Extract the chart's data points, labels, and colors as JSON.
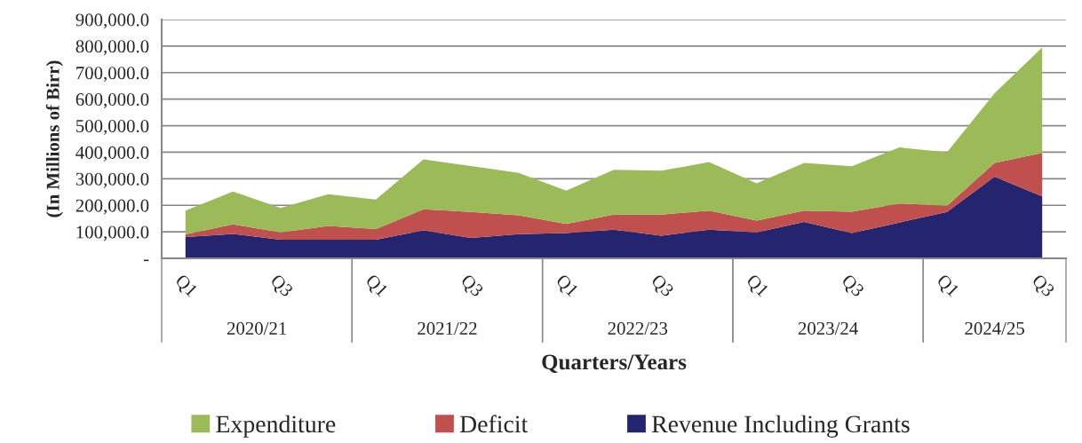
{
  "chart_data": {
    "type": "area",
    "stacked": true,
    "xlabel": "Quarters/Years",
    "ylabel": "(In Millions of Birr)",
    "categories": [
      "Q1",
      null,
      "Q3",
      null,
      "Q1",
      null,
      "Q3",
      null,
      "Q1",
      null,
      "Q3",
      null,
      "Q1",
      null,
      "Q3",
      null,
      "Q1",
      null,
      "Q3"
    ],
    "series": [
      {
        "name": "Revenue Including Grants",
        "color": "#25256f",
        "values": [
          80000,
          92000,
          70000,
          70000,
          70000,
          105000,
          77000,
          91000,
          95000,
          108000,
          85000,
          108000,
          98000,
          137000,
          95000,
          135000,
          175000,
          308000,
          233000
        ]
      },
      {
        "name": "Deficit",
        "color": "#c0504d",
        "values": [
          10000,
          36000,
          28000,
          52000,
          40000,
          80000,
          98000,
          71000,
          35000,
          57000,
          80000,
          72000,
          44000,
          43000,
          81000,
          72000,
          23000,
          52000,
          164000
        ]
      },
      {
        "name": "Expenditure",
        "color": "#9bbb59",
        "values": [
          90000,
          124000,
          92000,
          120000,
          112000,
          188000,
          173000,
          160000,
          125000,
          169000,
          165000,
          183000,
          141000,
          180000,
          171000,
          211000,
          202000,
          262000,
          398000
        ]
      }
    ],
    "ylim": [
      0,
      900000
    ],
    "yticks": [
      {
        "value": 0,
        "label": "-"
      },
      {
        "value": 100000,
        "label": "100,000.0"
      },
      {
        "value": 200000,
        "label": "200,000.0"
      },
      {
        "value": 300000,
        "label": "300,000.0"
      },
      {
        "value": 400000,
        "label": "400,000.0"
      },
      {
        "value": 500000,
        "label": "500,000.0"
      },
      {
        "value": 600000,
        "label": "600,000.0"
      },
      {
        "value": 700000,
        "label": "700,000.0"
      },
      {
        "value": 800000,
        "label": "800,000.0"
      },
      {
        "value": 900000,
        "label": "900,000.0"
      }
    ],
    "grid": "y",
    "legend": "bottom",
    "annotations": [
      "2020/21",
      "2021/22",
      "2022/23",
      "2023/24",
      "2024/25"
    ]
  }
}
